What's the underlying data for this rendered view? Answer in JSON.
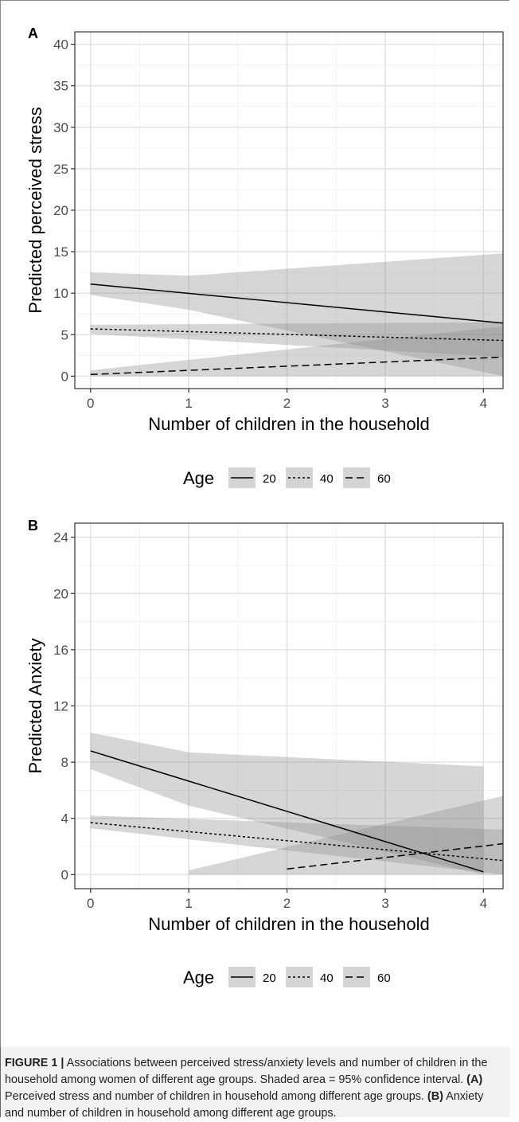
{
  "chart_data": [
    {
      "type": "line",
      "panel_label": "A",
      "xlabel": "Number of children in the household",
      "ylabel": "Predicted perceived stress",
      "xlim": [
        -0.16,
        4.2
      ],
      "ylim": [
        -1.5,
        41.5
      ],
      "x_ticks": [
        "0",
        "1",
        "2",
        "3",
        "4"
      ],
      "y_ticks": [
        "0",
        "5",
        "10",
        "15",
        "20",
        "25",
        "30",
        "35",
        "40"
      ],
      "grid": true,
      "legend": {
        "title": "Age",
        "position": "bottom",
        "entries": [
          "20",
          "40",
          "60"
        ]
      },
      "series": [
        {
          "name": "20",
          "linestyle": "solid",
          "x": [
            0,
            4.2
          ],
          "y": [
            11.1,
            6.4
          ],
          "ci_lower": [
            9.8,
            0.0
          ],
          "ci_upper": [
            12.5,
            14.8
          ],
          "ci_bend": {
            "x": 1,
            "lower": 8.0,
            "upper": 12.1
          }
        },
        {
          "name": "40",
          "linestyle": "dotted",
          "x": [
            0,
            4.2
          ],
          "y": [
            5.7,
            4.3
          ],
          "ci_lower": [
            5.1,
            2.3
          ],
          "ci_upper": [
            6.2,
            6.5
          ]
        },
        {
          "name": "60",
          "linestyle": "dashed",
          "x": [
            0,
            4.2
          ],
          "y": [
            0.2,
            2.3
          ],
          "ci_lower": [
            0.0,
            0.0
          ],
          "ci_upper": [
            0.7,
            6.0
          ]
        }
      ]
    },
    {
      "type": "line",
      "panel_label": "B",
      "xlabel": "Number of children in the household",
      "ylabel": "Predicted Anxiety",
      "xlim": [
        -0.16,
        4.2
      ],
      "ylim": [
        -1.0,
        25.0
      ],
      "x_ticks": [
        "0",
        "1",
        "2",
        "3",
        "4"
      ],
      "y_ticks": [
        "0",
        "4",
        "8",
        "12",
        "16",
        "20",
        "24"
      ],
      "grid": true,
      "legend": {
        "title": "Age",
        "position": "bottom",
        "entries": [
          "20",
          "40",
          "60"
        ]
      },
      "series": [
        {
          "name": "20",
          "linestyle": "solid",
          "x": [
            0,
            4
          ],
          "y": [
            8.8,
            0.2
          ],
          "ci_lower": [
            7.5,
            0.0
          ],
          "ci_upper": [
            10.1,
            7.7
          ],
          "ci_bend": {
            "x": 1,
            "lower": 4.9,
            "upper": 8.7
          }
        },
        {
          "name": "40",
          "linestyle": "dotted",
          "x": [
            0,
            4.2
          ],
          "y": [
            3.7,
            1.0
          ],
          "ci_lower": [
            3.3,
            0.0
          ],
          "ci_upper": [
            4.2,
            3.2
          ]
        },
        {
          "name": "60",
          "linestyle": "dashed",
          "x": [
            2,
            4.2
          ],
          "y": [
            0.4,
            2.2
          ],
          "ci_x": [
            1,
            4.2
          ],
          "ci_lower": [
            0.0,
            0.0
          ],
          "ci_upper": [
            0.3,
            5.6
          ]
        }
      ]
    }
  ],
  "caption": {
    "label": "FIGURE 1 |",
    "text": " Associations between perceived stress/anxiety levels and number of children in the household among women of different age groups. Shaded area = 95% confidence interval. ",
    "part_a_label": "(A)",
    "part_a_text": " Perceived stress and number of children in household among different age groups. ",
    "part_b_label": "(B)",
    "part_b_text": " Anxiety and number of children in household among different age groups."
  }
}
